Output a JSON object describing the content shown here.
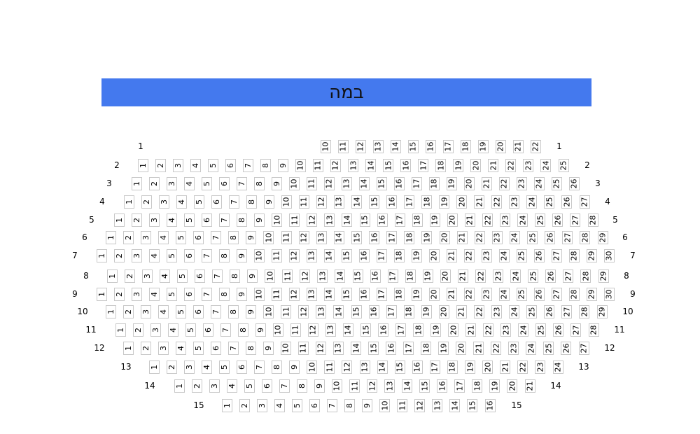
{
  "stage": {
    "label": "במה",
    "color": "#4479ee"
  },
  "seat_border_color": "#c8c8c8",
  "rows": [
    {
      "row": "1",
      "first_seat": 10,
      "last_seat": 22
    },
    {
      "row": "2",
      "first_seat": 1,
      "last_seat": 25
    },
    {
      "row": "3",
      "first_seat": 1,
      "last_seat": 26
    },
    {
      "row": "4",
      "first_seat": 1,
      "last_seat": 27
    },
    {
      "row": "5",
      "first_seat": 1,
      "last_seat": 28
    },
    {
      "row": "6",
      "first_seat": 1,
      "last_seat": 29
    },
    {
      "row": "7",
      "first_seat": 1,
      "last_seat": 30
    },
    {
      "row": "8",
      "first_seat": 1,
      "last_seat": 29
    },
    {
      "row": "9",
      "first_seat": 1,
      "last_seat": 30
    },
    {
      "row": "10",
      "first_seat": 1,
      "last_seat": 29
    },
    {
      "row": "11",
      "first_seat": 1,
      "last_seat": 28
    },
    {
      "row": "12",
      "first_seat": 1,
      "last_seat": 27
    },
    {
      "row": "13",
      "first_seat": 1,
      "last_seat": 24
    },
    {
      "row": "14",
      "first_seat": 1,
      "last_seat": 21
    },
    {
      "row": "15",
      "first_seat": 1,
      "last_seat": 16
    }
  ]
}
